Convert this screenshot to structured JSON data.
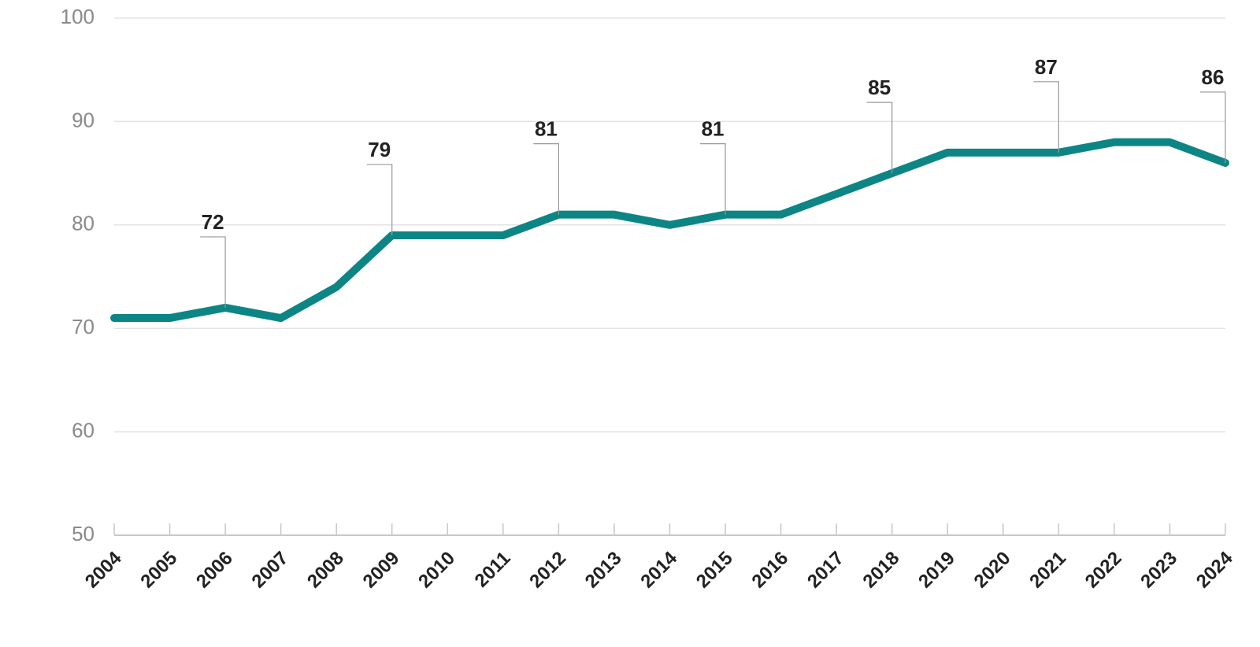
{
  "chart_data": {
    "type": "line",
    "categories": [
      "2004",
      "2005",
      "2006",
      "2007",
      "2008",
      "2009",
      "2010",
      "2011",
      "2012",
      "2013",
      "2014",
      "2015",
      "2016",
      "2017",
      "2018",
      "2019",
      "2020",
      "2021",
      "2022",
      "2023",
      "2024"
    ],
    "series": [
      {
        "color": "#0e8585",
        "values": [
          71,
          71,
          72,
          71,
          74,
          79,
          79,
          79,
          81,
          81,
          80,
          81,
          81,
          83,
          85,
          87,
          87,
          87,
          88,
          88,
          86
        ],
        "value_labels": [
          null,
          null,
          "72",
          null,
          null,
          "79",
          null,
          null,
          "81",
          null,
          null,
          "81",
          null,
          null,
          "85",
          null,
          null,
          "87",
          null,
          null,
          "86"
        ]
      }
    ],
    "ylim": [
      50,
      100
    ],
    "yticks": [
      50,
      60,
      70,
      80,
      90,
      100
    ],
    "grid": true
  }
}
